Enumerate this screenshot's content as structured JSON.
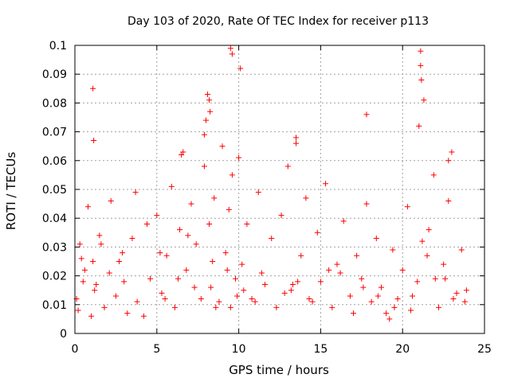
{
  "chart_data": {
    "type": "scatter",
    "title": "Day 103 of 2020, Rate Of TEC Index for receiver p113",
    "xlabel": "GPS time / hours",
    "ylabel": "ROTI / TECUs",
    "xlim": [
      0,
      25
    ],
    "ylim": [
      0,
      0.1
    ],
    "xticks": [
      "0",
      "5",
      "10",
      "15",
      "20",
      "25"
    ],
    "yticks": [
      "0",
      "0.01",
      "0.02",
      "0.03",
      "0.04",
      "0.05",
      "0.06",
      "0.07",
      "0.08",
      "0.09",
      "0.1"
    ],
    "xtick_values": [
      0,
      5,
      10,
      15,
      20,
      25
    ],
    "ytick_values": [
      0,
      0.01,
      0.02,
      0.03,
      0.04,
      0.05,
      0.06,
      0.07,
      0.08,
      0.09,
      0.1
    ],
    "grid": true,
    "marker": "+",
    "color": "#ff0000",
    "x": [
      0.1,
      0.3,
      0.5,
      0.8,
      1.0,
      1.1,
      1.2,
      1.5,
      1.8,
      2.1,
      2.2,
      2.5,
      2.9,
      3.2,
      3.5,
      3.7,
      3.8,
      4.4,
      4.6,
      5.0,
      5.3,
      5.6,
      5.9,
      6.1,
      6.4,
      6.6,
      6.8,
      7.1,
      7.4,
      7.7,
      7.9,
      8.0,
      8.1,
      8.2,
      8.3,
      8.5,
      8.8,
      9.0,
      9.2,
      9.4,
      9.5,
      9.6,
      9.8,
      10.0,
      10.2,
      10.5,
      10.8,
      11.2,
      11.6,
      12.0,
      12.3,
      12.6,
      13.0,
      13.2,
      13.5,
      13.8,
      14.1,
      14.5,
      14.8,
      15.0,
      15.3,
      15.7,
      16.0,
      16.4,
      16.8,
      17.2,
      17.5,
      17.8,
      18.1,
      18.4,
      18.7,
      19.0,
      19.4,
      19.7,
      20.0,
      20.3,
      20.6,
      20.9,
      21.0,
      21.1,
      21.3,
      21.6,
      21.9,
      22.2,
      22.5,
      22.8,
      23.0,
      23.3,
      23.6,
      23.8,
      0.2,
      0.6,
      1.3,
      2.7,
      4.2,
      5.5,
      6.3,
      7.3,
      8.6,
      9.3,
      10.3,
      11.0,
      12.8,
      13.6,
      14.3,
      16.2,
      17.0,
      18.5,
      19.2,
      20.5,
      21.5,
      22.0,
      23.1,
      23.9,
      0.4,
      1.6,
      3.0,
      5.2,
      6.9,
      8.4,
      9.9,
      11.4,
      13.3,
      15.5,
      17.6,
      19.5,
      21.2,
      22.6,
      9.5,
      9.6,
      10.1,
      21.1,
      21.15,
      1.1,
      1.15,
      17.8,
      8.2,
      8.25,
      6.5,
      7.9,
      13.5,
      22.8
    ],
    "y": [
      0.012,
      0.031,
      0.018,
      0.044,
      0.006,
      0.025,
      0.015,
      0.034,
      0.009,
      0.021,
      0.046,
      0.013,
      0.028,
      0.007,
      0.033,
      0.049,
      0.011,
      0.038,
      0.019,
      0.041,
      0.014,
      0.027,
      0.051,
      0.009,
      0.036,
      0.063,
      0.022,
      0.045,
      0.031,
      0.012,
      0.058,
      0.074,
      0.083,
      0.038,
      0.016,
      0.047,
      0.011,
      0.065,
      0.028,
      0.043,
      0.009,
      0.055,
      0.019,
      0.061,
      0.024,
      0.038,
      0.012,
      0.049,
      0.017,
      0.033,
      0.009,
      0.041,
      0.058,
      0.015,
      0.068,
      0.027,
      0.047,
      0.011,
      0.035,
      0.018,
      0.052,
      0.009,
      0.024,
      0.039,
      0.013,
      0.027,
      0.019,
      0.045,
      0.011,
      0.033,
      0.016,
      0.007,
      0.029,
      0.012,
      0.022,
      0.044,
      0.013,
      0.018,
      0.072,
      0.093,
      0.081,
      0.036,
      0.055,
      0.009,
      0.024,
      0.046,
      0.063,
      0.014,
      0.029,
      0.011,
      0.008,
      0.022,
      0.017,
      0.025,
      0.006,
      0.012,
      0.019,
      0.016,
      0.009,
      0.022,
      0.015,
      0.011,
      0.014,
      0.018,
      0.012,
      0.021,
      0.007,
      0.013,
      0.005,
      0.008,
      0.027,
      0.019,
      0.012,
      0.015,
      0.026,
      0.031,
      0.018,
      0.028,
      0.034,
      0.025,
      0.013,
      0.021,
      0.017,
      0.022,
      0.016,
      0.009,
      0.032,
      0.019,
      0.099,
      0.097,
      0.092,
      0.098,
      0.088,
      0.085,
      0.067,
      0.076,
      0.081,
      0.077,
      0.062,
      0.069,
      0.066,
      0.06
    ]
  }
}
